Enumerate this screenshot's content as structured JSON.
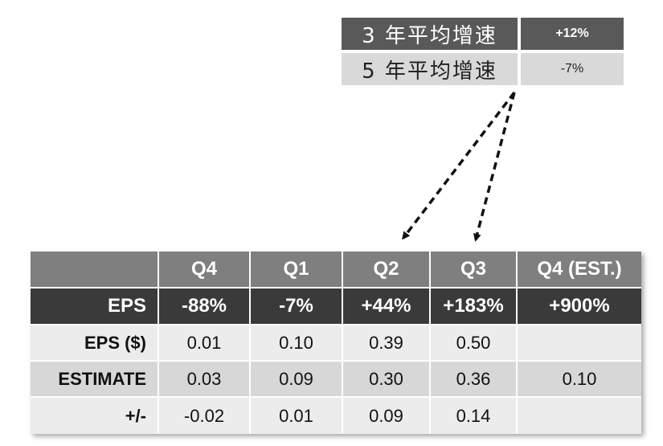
{
  "growth": {
    "rows": [
      {
        "label": "3 年平均增速",
        "value": "+12%"
      },
      {
        "label": "5 年平均增速",
        "value": "-7%"
      }
    ]
  },
  "table": {
    "columns": [
      "",
      "Q4",
      "Q1",
      "Q2",
      "Q3",
      "Q4 (EST.)"
    ],
    "eps_row": {
      "label": "EPS",
      "cells": [
        "-88%",
        "-7%",
        "+44%",
        "+183%",
        "+900%"
      ]
    },
    "rows": [
      {
        "label": "EPS ($)",
        "cells": [
          "0.01",
          "0.10",
          "0.39",
          "0.50",
          ""
        ]
      },
      {
        "label": "ESTIMATE",
        "cells": [
          "0.03",
          "0.09",
          "0.30",
          "0.36",
          "0.10"
        ]
      },
      {
        "label": "+/-",
        "cells": [
          "-0.02",
          "0.01",
          "0.09",
          "0.14",
          ""
        ]
      }
    ]
  }
}
